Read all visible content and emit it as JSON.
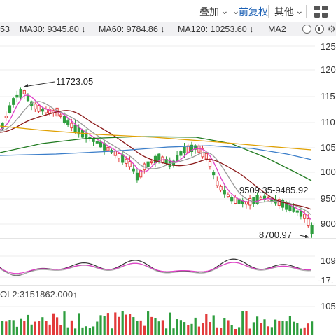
{
  "toolbar": {
    "overlay_label": "叠加",
    "adjust_label": "前复权",
    "other_label": "其他"
  },
  "ma_legend": [
    {
      "text": "53",
      "color": "#555555"
    },
    {
      "text": "MA30: 9345.80 ↓",
      "color": "#8b1a1a"
    },
    {
      "text": "MA60: 9784.86 ↓",
      "color": "#1f7a1f"
    },
    {
      "text": "MA120: 10253.60 ↓",
      "color": "#3a7dc9"
    },
    {
      "text": "MA2",
      "color": "#e0a000"
    }
  ],
  "price_axis": [
    "125",
    "120",
    "115",
    "110",
    "105",
    "100",
    "950",
    "900"
  ],
  "annotations": {
    "high": "11723.05",
    "low": "8700.97",
    "range": "9509.35-9485.92"
  },
  "macd_axis": [
    "109",
    "-17."
  ],
  "volume_label": "OL2:3151862.000↑",
  "volume_axis": "1054",
  "colors": {
    "up": "#e23b3b",
    "down": "#2f9e3f",
    "accent": "#1a5fb4"
  }
}
